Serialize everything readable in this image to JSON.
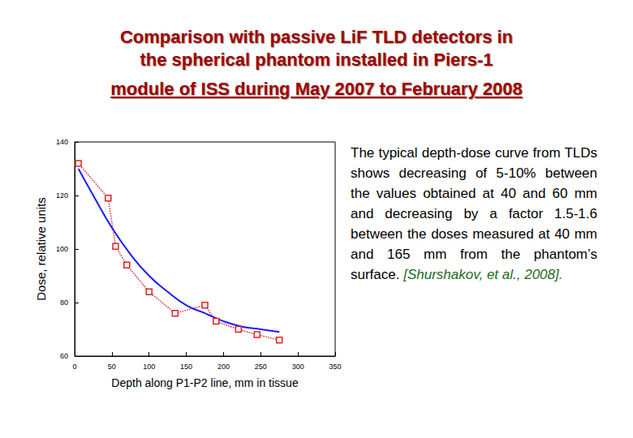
{
  "header": {
    "title_lines": [
      "Comparison with passive LiF TLD detectors in",
      "the spherical phantom installed in Piers-1",
      "module of ISS during May 2007 to February 2008"
    ]
  },
  "body": {
    "text": "The typical depth-dose curve from TLDs shows decreasing of 5-10% between the values obtained at 40 and 60 mm and decreasing by a factor 1.5-1.6 between the doses measured at 40 mm and 165 mm from the phantom’s surface.",
    "citation": "[Shurshakov, et al., 2008]."
  },
  "chart_data": {
    "type": "line",
    "xlabel": "Depth along P1-P2 line, mm in tissue",
    "ylabel": "Dose, relative units",
    "xlim": [
      0,
      350
    ],
    "xticks": [
      0,
      50,
      100,
      150,
      200,
      250,
      300,
      350
    ],
    "ylim": [
      60,
      140
    ],
    "yticks": [
      60,
      80,
      100,
      120,
      140
    ],
    "grid": false,
    "series": [
      {
        "color": "#dd2222",
        "marker": "square",
        "line_style": "dotted",
        "x": [
          5,
          45,
          55,
          70,
          100,
          135,
          175,
          190,
          220,
          245,
          275
        ],
        "values": [
          132,
          119,
          101,
          94,
          84,
          76,
          79,
          73,
          70,
          68,
          66
        ]
      },
      {
        "color": "#1a1aff",
        "marker": "none",
        "line_style": "solid",
        "x": [
          5,
          25,
          50,
          75,
          100,
          125,
          150,
          175,
          200,
          225,
          250,
          275
        ],
        "values": [
          130,
          120,
          108,
          98,
          90,
          84,
          79,
          76,
          73,
          71,
          70,
          69
        ]
      }
    ]
  }
}
